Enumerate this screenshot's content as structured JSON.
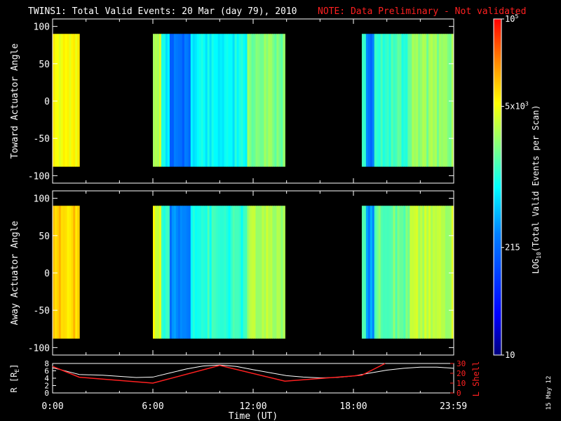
{
  "header": {
    "title": "TWINS1: Total Valid Events: 20 Mar (day  79), 2010",
    "note": "NOTE: Data Preliminary - Not validated"
  },
  "side_note": "15 May 12",
  "colors": {
    "background": "#000000",
    "axes": "#ffffff",
    "note": "#ff2020",
    "r_line": "#ffffff",
    "l_shell_line": "#ff2020"
  },
  "chart_data": [
    {
      "type": "heatmap",
      "panel": "toward",
      "ylabel": "Toward Actuator Angle",
      "xlim": [
        0,
        24
      ],
      "ylim": [
        -110,
        110
      ],
      "yticks": [
        100,
        50,
        0,
        -50,
        -100
      ],
      "data_angle_range": [
        -88,
        90
      ],
      "color_scale": "log",
      "data_blocks": [
        {
          "start_hour": 0.0,
          "end_hour": 1.6,
          "level": 0.74
        },
        {
          "start_hour": 6.0,
          "end_hour": 13.9,
          "level": 0.5
        },
        {
          "start_hour": 18.5,
          "end_hour": 23.99,
          "level": 0.56
        }
      ]
    },
    {
      "type": "heatmap",
      "panel": "away",
      "ylabel": "Away Actuator Angle",
      "xlim": [
        0,
        24
      ],
      "ylim": [
        -110,
        110
      ],
      "yticks": [
        100,
        50,
        0,
        -50,
        -100
      ],
      "data_angle_range": [
        -88,
        90
      ],
      "color_scale": "log",
      "data_blocks": [
        {
          "start_hour": 0.0,
          "end_hour": 1.6,
          "level": 0.8
        },
        {
          "start_hour": 6.0,
          "end_hour": 13.9,
          "level": 0.54
        },
        {
          "start_hour": 18.5,
          "end_hour": 23.99,
          "level": 0.6
        }
      ]
    },
    {
      "type": "line",
      "panel": "orbit",
      "xlabel": "Time (UT)",
      "xlim": [
        0,
        24
      ],
      "xtick_labels": [
        "0:00",
        "6:00",
        "12:00",
        "18:00",
        "23:59"
      ],
      "xtick_hours": [
        0,
        6,
        12,
        18,
        23.98
      ],
      "ylabel_left": "R [R",
      "ylabel_left_sub": "E",
      "ylabel_left_end": "]",
      "ylim_left": [
        0,
        8
      ],
      "yticks_left": [
        "8",
        "6",
        "4",
        "2",
        "0"
      ],
      "ylabel_right": "L Shell",
      "ylim_right": [
        0,
        30
      ],
      "yticks_right": [
        "30",
        "20",
        "10",
        "0"
      ],
      "series": [
        {
          "axis": "left",
          "x": [
            0,
            0.5,
            1,
            1.6,
            3,
            5,
            6,
            7,
            8,
            9,
            10,
            11,
            12,
            13,
            14,
            15,
            16,
            17,
            18,
            19,
            20,
            21,
            22,
            23,
            23.99
          ],
          "y": [
            6.8,
            6.3,
            5.7,
            5.0,
            4.8,
            4.2,
            4.3,
            5.4,
            6.5,
            7.3,
            7.6,
            7.2,
            6.3,
            5.5,
            4.7,
            4.3,
            4.1,
            4.2,
            4.6,
            5.4,
            6.2,
            6.7,
            7.0,
            7.0,
            6.7
          ]
        },
        {
          "axis": "right",
          "x": [
            0,
            1.6,
            6.0,
            10,
            13.9,
            18.5,
            19.9
          ],
          "y": [
            27,
            16,
            10,
            28,
            12,
            18,
            30
          ]
        }
      ]
    }
  ],
  "colorbar": {
    "label": "LOG",
    "label_sub": "10",
    "label_end": "(Total Valid Events per Scan)",
    "ticks": [
      {
        "base": "10",
        "exp": "5",
        "level": 1.0
      },
      {
        "base": "5x10",
        "exp": "3",
        "level": 0.74
      },
      {
        "base": "215",
        "exp": "",
        "level": 0.32
      },
      {
        "base": "10",
        "exp": "",
        "level": 0.0
      }
    ]
  }
}
